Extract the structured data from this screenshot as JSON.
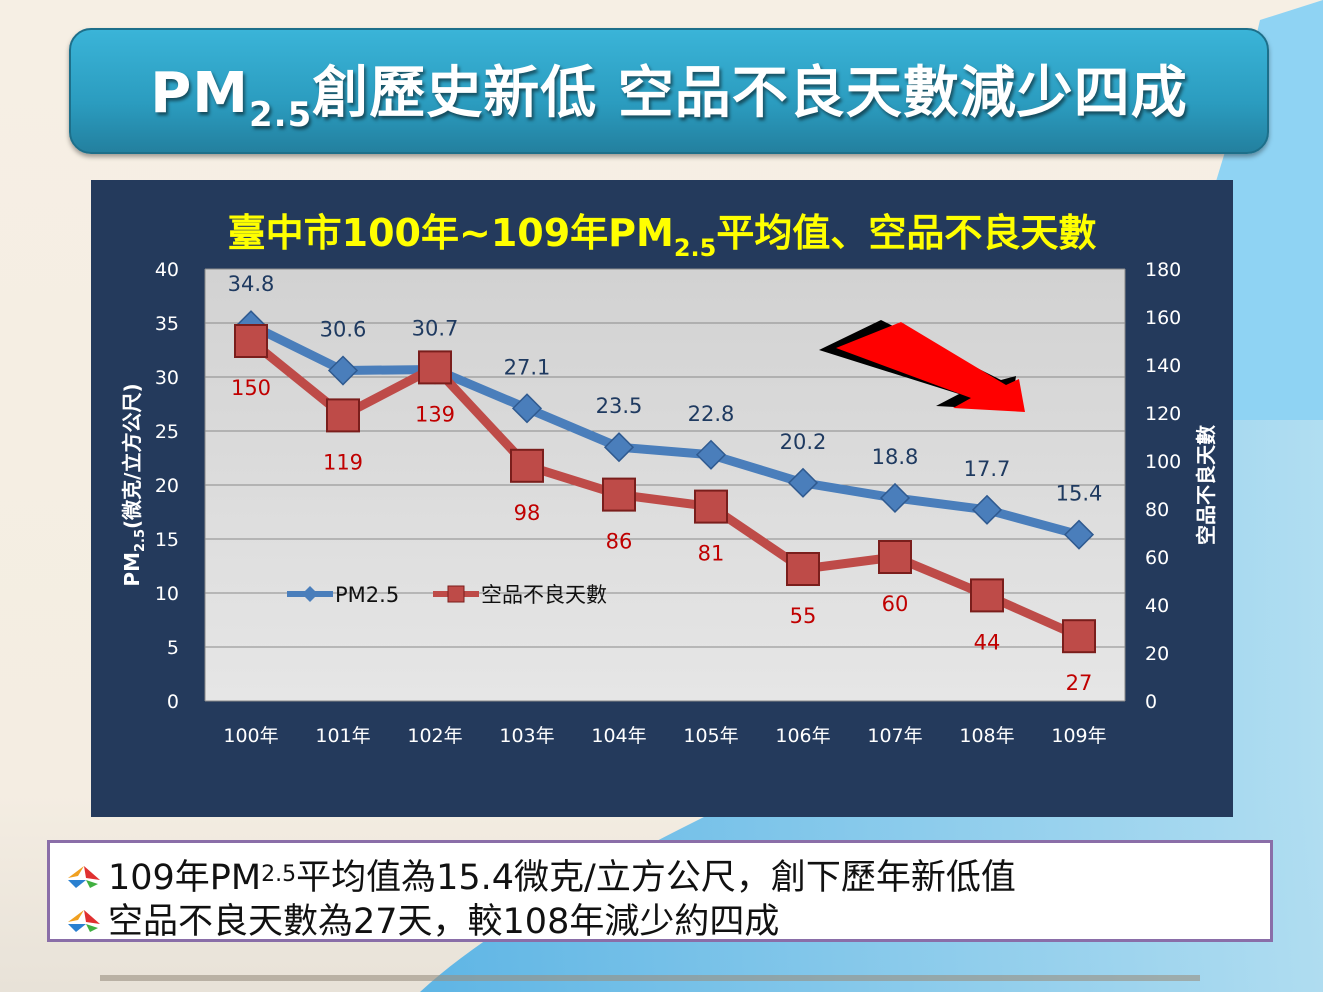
{
  "slide": {
    "title_prefix": "PM",
    "title_sub": "2.5",
    "title_suffix": "創歷史新低  空品不良天數減少四成"
  },
  "notes": [
    {
      "prefix": "109年PM",
      "sub": "2.5",
      "suffix": "平均值為15.4微克/立方公尺，創下歷年新低值",
      "icon": "star-bullet-icon"
    },
    {
      "prefix": "空品不良天數為27天，較108年減少約四成",
      "sub": "",
      "suffix": "",
      "icon": "star-bullet-icon"
    }
  ],
  "chart_data": {
    "type": "line",
    "title_prefix": "臺中市100年~109年PM",
    "title_sub": "2.5",
    "title_suffix": "平均值、空品不良天數",
    "categories": [
      "100年",
      "101年",
      "102年",
      "103年",
      "104年",
      "105年",
      "106年",
      "107年",
      "108年",
      "109年"
    ],
    "ylabel_prefix": "PM",
    "ylabel_sub": "2.5",
    "ylabel_suffix": "(微克/立方公尺)",
    "y2label": "空品不良天數",
    "ylim": [
      0,
      40
    ],
    "y2lim": [
      0,
      180
    ],
    "yticks": [
      0,
      5,
      10,
      15,
      20,
      25,
      30,
      35,
      40
    ],
    "y2ticks": [
      0,
      20,
      40,
      60,
      80,
      100,
      120,
      140,
      160,
      180
    ],
    "grid": true,
    "legend": "inside-left",
    "series": [
      {
        "name": "PM2.5",
        "axis": "left",
        "color": "#4a7ebb",
        "marker": "diamond",
        "values": [
          34.8,
          30.6,
          30.7,
          27.1,
          23.5,
          22.8,
          20.2,
          18.8,
          17.7,
          15.4
        ]
      },
      {
        "name": "空品不良天數",
        "axis": "right",
        "color": "#be4b48",
        "marker": "square",
        "values": [
          150,
          119,
          139,
          98,
          86,
          81,
          55,
          60,
          44,
          27
        ]
      }
    ],
    "annotation": "downward-trend-arrow"
  }
}
